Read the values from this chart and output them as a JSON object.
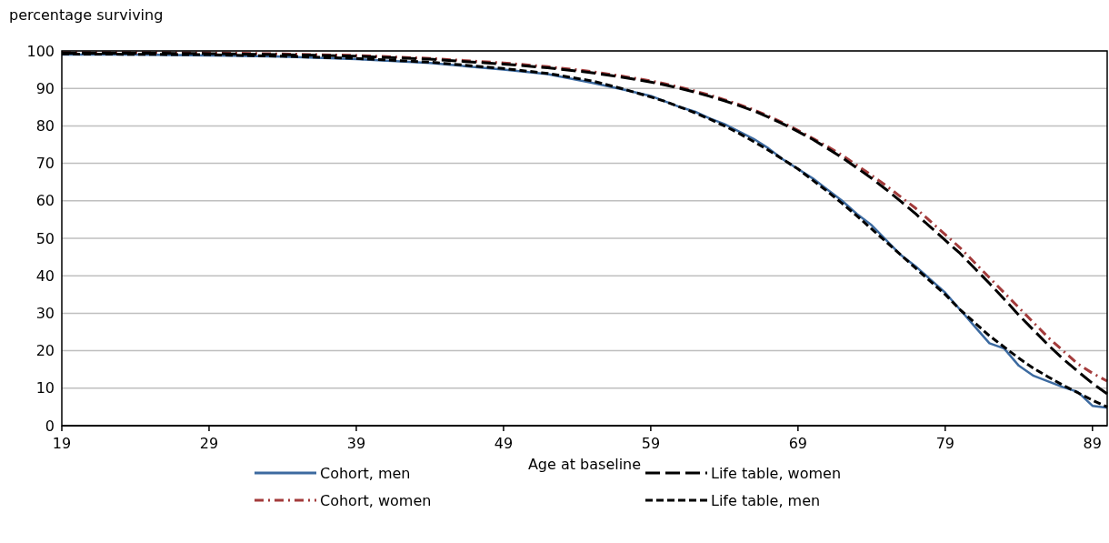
{
  "chart_data": {
    "type": "line",
    "ylabel": "percentage surviving",
    "xlabel": "Age at baseline",
    "x": [
      19,
      24,
      29,
      34,
      39,
      44,
      49,
      52,
      55,
      57,
      59,
      60,
      61,
      62,
      63,
      64,
      65,
      66,
      67,
      68,
      69,
      70,
      71,
      72,
      73,
      74,
      75,
      76,
      77,
      78,
      79,
      80,
      81,
      82,
      83,
      84,
      85,
      86,
      87,
      88,
      89,
      90
    ],
    "series": [
      {
        "name": "Cohort, men",
        "color": "#3c6aa0",
        "line_style": "solid",
        "values": [
          99,
          99,
          98.8,
          98.5,
          97.8,
          96.8,
          95,
          93.8,
          91.5,
          89.8,
          88,
          86.5,
          85,
          83.8,
          82,
          80.5,
          78.5,
          76.5,
          74,
          71,
          68.5,
          66,
          63,
          60,
          56.5,
          53.5,
          49.5,
          45.5,
          42.5,
          39,
          35.5,
          31,
          26.5,
          22,
          20.6,
          16,
          13.3,
          11.8,
          10.3,
          9,
          5.3,
          4.8
        ]
      },
      {
        "name": "Cohort, women",
        "color": "#a33b3b",
        "line_style": "dashdot",
        "values": [
          99.6,
          99.6,
          99.5,
          99.2,
          98.8,
          98,
          96.8,
          95.8,
          94.5,
          93.3,
          92,
          91.2,
          90.3,
          89.3,
          88.2,
          87,
          85.7,
          84.3,
          82.6,
          80.8,
          78.8,
          76.7,
          74.5,
          72.2,
          69.5,
          66.8,
          64,
          61,
          58,
          54.5,
          51,
          47.5,
          43.5,
          39.5,
          35.5,
          31.5,
          27.5,
          23.5,
          20,
          16.5,
          14,
          11.9
        ]
      },
      {
        "name": "Life table, women",
        "color": "#000000",
        "line_style": "longdash",
        "values": [
          99.4,
          99.4,
          99.3,
          99,
          98.6,
          97.8,
          96.5,
          95.5,
          94.2,
          93,
          91.7,
          90.9,
          90,
          89,
          87.9,
          86.7,
          85.4,
          84,
          82.3,
          80.5,
          78.5,
          76.4,
          74,
          71.5,
          68.8,
          66,
          63,
          59.8,
          56.5,
          53,
          49.5,
          46,
          42,
          38,
          33.8,
          29.5,
          25.5,
          21.5,
          17.8,
          14.5,
          11.3,
          8.5
        ]
      },
      {
        "name": "Life table, men",
        "color": "#000000",
        "line_style": "dashed",
        "values": [
          99.2,
          99.1,
          99,
          98.6,
          98,
          97,
          95.3,
          94,
          92,
          90,
          87.7,
          86.5,
          85,
          83.5,
          81.8,
          80,
          78,
          75.8,
          73.5,
          71,
          68.5,
          65.5,
          62.5,
          59.3,
          56,
          52.5,
          49,
          45.5,
          42,
          38.5,
          35,
          31,
          27.5,
          24,
          21,
          18,
          15.3,
          13,
          10.8,
          8.8,
          6.8,
          5
        ]
      }
    ],
    "xlim": [
      19,
      90
    ],
    "xticks": [
      19,
      29,
      39,
      49,
      59,
      69,
      79,
      89
    ],
    "ylim": [
      0,
      100
    ],
    "yticks": [
      0,
      10,
      20,
      30,
      40,
      50,
      60,
      70,
      80,
      90,
      100
    ],
    "grid": "y",
    "legend": "bottom"
  }
}
